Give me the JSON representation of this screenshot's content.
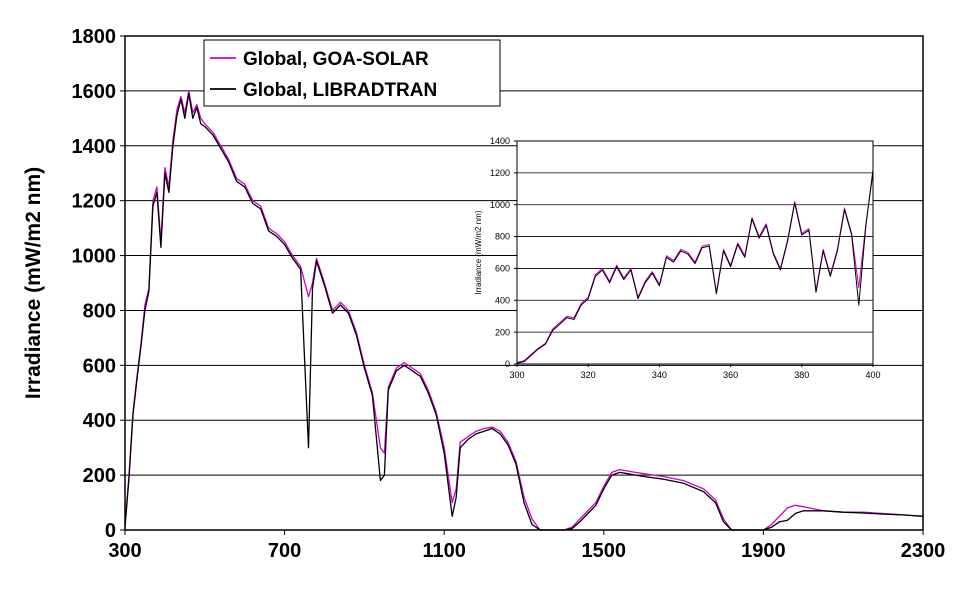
{
  "chart_data": [
    {
      "type": "line",
      "xlabel": "",
      "ylabel": "Irradiance (mW/m2 nm)",
      "xlim": [
        300,
        2300
      ],
      "ylim": [
        0,
        1800
      ],
      "xticks": [
        "300",
        "700",
        "1100",
        "1500",
        "1900",
        "2300"
      ],
      "yticks": [
        "0",
        "200",
        "400",
        "600",
        "800",
        "1000",
        "1200",
        "1400",
        "1600",
        "1800"
      ],
      "grid": "horizontal",
      "legend_position": "top-left",
      "series": [
        {
          "name": "Global, GOA-SOLAR",
          "color": "#cc00cc",
          "x": [
            300,
            310,
            320,
            330,
            340,
            350,
            360,
            370,
            380,
            390,
            400,
            410,
            420,
            430,
            440,
            450,
            460,
            470,
            480,
            490,
            500,
            520,
            540,
            560,
            580,
            600,
            620,
            640,
            660,
            680,
            700,
            720,
            740,
            760,
            770,
            780,
            800,
            820,
            840,
            860,
            880,
            900,
            920,
            940,
            950,
            960,
            980,
            1000,
            1020,
            1040,
            1060,
            1080,
            1100,
            1120,
            1130,
            1140,
            1160,
            1180,
            1200,
            1220,
            1240,
            1260,
            1280,
            1300,
            1320,
            1340,
            1360,
            1380,
            1400,
            1420,
            1440,
            1460,
            1480,
            1500,
            1520,
            1540,
            1560,
            1580,
            1600,
            1650,
            1700,
            1750,
            1780,
            1800,
            1820,
            1850,
            1880,
            1900,
            1920,
            1940,
            1960,
            1980,
            2000,
            2050,
            2100,
            2150,
            2200,
            2250,
            2300
          ],
          "y": [
            20,
            200,
            430,
            560,
            680,
            820,
            880,
            1200,
            1250,
            1050,
            1320,
            1250,
            1420,
            1530,
            1580,
            1520,
            1600,
            1520,
            1550,
            1500,
            1480,
            1450,
            1400,
            1350,
            1280,
            1260,
            1200,
            1180,
            1100,
            1080,
            1050,
            1000,
            960,
            850,
            900,
            990,
            900,
            800,
            830,
            800,
            720,
            600,
            500,
            300,
            280,
            520,
            590,
            610,
            590,
            570,
            510,
            430,
            300,
            100,
            150,
            320,
            340,
            360,
            370,
            375,
            360,
            320,
            250,
            120,
            40,
            0,
            0,
            0,
            0,
            10,
            40,
            70,
            100,
            160,
            210,
            220,
            215,
            210,
            205,
            195,
            180,
            150,
            110,
            40,
            0,
            0,
            0,
            0,
            20,
            50,
            80,
            90,
            85,
            70,
            65,
            65,
            60,
            55,
            50
          ]
        },
        {
          "name": "Global, LIBRADTRAN",
          "color": "#000000",
          "x": [
            300,
            310,
            320,
            330,
            340,
            350,
            360,
            370,
            380,
            390,
            400,
            410,
            420,
            430,
            440,
            450,
            460,
            470,
            480,
            490,
            500,
            520,
            540,
            560,
            580,
            600,
            620,
            640,
            660,
            680,
            700,
            720,
            740,
            760,
            770,
            780,
            800,
            820,
            840,
            860,
            880,
            900,
            920,
            940,
            950,
            960,
            980,
            1000,
            1020,
            1040,
            1060,
            1080,
            1100,
            1120,
            1130,
            1140,
            1160,
            1180,
            1200,
            1220,
            1240,
            1260,
            1280,
            1300,
            1320,
            1340,
            1360,
            1380,
            1400,
            1420,
            1440,
            1460,
            1480,
            1500,
            1520,
            1540,
            1560,
            1580,
            1600,
            1650,
            1700,
            1750,
            1780,
            1800,
            1820,
            1850,
            1880,
            1900,
            1920,
            1940,
            1960,
            1980,
            2000,
            2050,
            2100,
            2150,
            2200,
            2250,
            2300
          ],
          "y": [
            10,
            190,
            420,
            550,
            670,
            800,
            870,
            1180,
            1230,
            1030,
            1300,
            1230,
            1400,
            1510,
            1570,
            1500,
            1590,
            1500,
            1540,
            1480,
            1470,
            1440,
            1390,
            1340,
            1270,
            1250,
            1190,
            1170,
            1090,
            1070,
            1040,
            990,
            950,
            300,
            880,
            980,
            890,
            790,
            820,
            790,
            710,
            590,
            490,
            180,
            200,
            510,
            580,
            600,
            580,
            560,
            500,
            420,
            280,
            50,
            120,
            300,
            330,
            350,
            360,
            370,
            350,
            310,
            240,
            100,
            20,
            0,
            0,
            0,
            0,
            5,
            30,
            60,
            90,
            150,
            200,
            210,
            205,
            200,
            195,
            185,
            170,
            140,
            100,
            30,
            0,
            0,
            0,
            0,
            10,
            30,
            35,
            60,
            70,
            70,
            65,
            62,
            58,
            55,
            50
          ]
        }
      ]
    },
    {
      "type": "line",
      "xlabel": "",
      "ylabel": "Irradiance (mW/m2 nm)",
      "xlim": [
        300,
        400
      ],
      "ylim": [
        0,
        1400
      ],
      "xticks": [
        "300",
        "320",
        "340",
        "360",
        "380",
        "400"
      ],
      "yticks": [
        "0",
        "200",
        "400",
        "600",
        "800",
        "1000",
        "1200",
        "1400"
      ],
      "grid": "horizontal",
      "series": [
        {
          "color": "#cc00cc",
          "x": [
            300,
            302,
            304,
            306,
            308,
            310,
            312,
            314,
            316,
            318,
            320,
            322,
            324,
            326,
            328,
            330,
            332,
            334,
            336,
            338,
            340,
            342,
            344,
            346,
            348,
            350,
            352,
            354,
            356,
            358,
            360,
            362,
            364,
            366,
            368,
            370,
            372,
            374,
            376,
            378,
            380,
            382,
            384,
            386,
            388,
            390,
            392,
            394,
            396,
            398,
            400
          ],
          "y": [
            10,
            20,
            60,
            100,
            130,
            220,
            260,
            300,
            290,
            380,
            420,
            560,
            600,
            520,
            620,
            540,
            600,
            420,
            520,
            580,
            500,
            680,
            650,
            720,
            700,
            640,
            740,
            750,
            450,
            720,
            620,
            760,
            680,
            920,
            800,
            880,
            700,
            600,
            780,
            1020,
            820,
            850,
            460,
            720,
            560,
            720,
            980,
            820,
            480,
            880,
            1200
          ]
        },
        {
          "color": "#000000",
          "x": [
            300,
            302,
            304,
            306,
            308,
            310,
            312,
            314,
            316,
            318,
            320,
            322,
            324,
            326,
            328,
            330,
            332,
            334,
            336,
            338,
            340,
            342,
            344,
            346,
            348,
            350,
            352,
            354,
            356,
            358,
            360,
            362,
            364,
            366,
            368,
            370,
            372,
            374,
            376,
            378,
            380,
            382,
            384,
            386,
            388,
            390,
            392,
            394,
            396,
            398,
            400
          ],
          "y": [
            5,
            15,
            55,
            95,
            125,
            210,
            250,
            290,
            280,
            370,
            410,
            550,
            590,
            510,
            610,
            530,
            590,
            410,
            510,
            570,
            490,
            670,
            640,
            710,
            690,
            630,
            730,
            740,
            440,
            710,
            610,
            750,
            670,
            910,
            790,
            870,
            690,
            590,
            770,
            1010,
            810,
            840,
            450,
            710,
            550,
            710,
            970,
            810,
            370,
            870,
            1220
          ]
        }
      ]
    }
  ]
}
